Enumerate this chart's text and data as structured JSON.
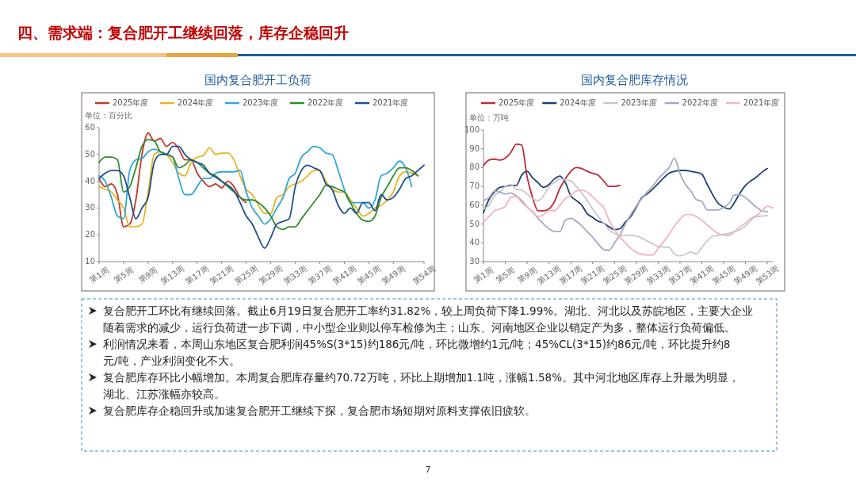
{
  "chart_data": [
    {
      "type": "line",
      "title": "国内复合肥开工负荷",
      "ylabel": "单位：百分比",
      "legend": "top",
      "grid": false,
      "ylim": [
        10,
        60
      ],
      "yticks": [
        10,
        20,
        30,
        40,
        50,
        60
      ],
      "categories": [
        "第1周",
        null,
        null,
        null,
        "第5周",
        null,
        null,
        null,
        "第9周",
        null,
        null,
        null,
        "第13周",
        null,
        null,
        null,
        "第17周",
        null,
        null,
        null,
        "第21周",
        null,
        null,
        null,
        "第25周",
        null,
        null,
        null,
        "第29周",
        null,
        null,
        null,
        "第33周",
        null,
        null,
        null,
        "第37周",
        null,
        null,
        null,
        "第41周",
        null,
        null,
        null,
        "第45周",
        null,
        null,
        null,
        "第49周",
        null,
        null,
        null,
        null,
        "第54周"
      ],
      "series": [
        {
          "name": "2025年度",
          "color": "#c0392b",
          "values": [
            41,
            38,
            39,
            35,
            23,
            24,
            33,
            50,
            58,
            55,
            56,
            53,
            54.5,
            52,
            48,
            48,
            43,
            40,
            38,
            39,
            37.5,
            40,
            38,
            34,
            32,
            null,
            null,
            null,
            null,
            null,
            null,
            null,
            null,
            null,
            null,
            null,
            null,
            null,
            null,
            null,
            null,
            null,
            null,
            null,
            null,
            null,
            null,
            null,
            null,
            null,
            null,
            null,
            null,
            null
          ]
        },
        {
          "name": "2024年度",
          "color": "#e6b422",
          "values": [
            38,
            37,
            36,
            33,
            30,
            23,
            23,
            24,
            36,
            50,
            51,
            50,
            47,
            43,
            42,
            47,
            49,
            49.5,
            52.5,
            50,
            50.5,
            50.5,
            48,
            42,
            37,
            35,
            31,
            28,
            28,
            34,
            35,
            38,
            39,
            40,
            42,
            44,
            44,
            40,
            37,
            36,
            36,
            33,
            30,
            27,
            28,
            30,
            31,
            33,
            36,
            42,
            43.5,
            43,
            42,
            null
          ]
        },
        {
          "name": "2023年度",
          "color": "#2ea7d8",
          "values": [
            42,
            40,
            34,
            27,
            26,
            44,
            48,
            48.5,
            51,
            52,
            51,
            50,
            49,
            41,
            35,
            35,
            38,
            41,
            41,
            43,
            43.5,
            43.5,
            43.5,
            44,
            36,
            30,
            27,
            24,
            26,
            30,
            34,
            41,
            43,
            49,
            51,
            53,
            52.5,
            50.5,
            50,
            44,
            37,
            32,
            32,
            32,
            30,
            33,
            42,
            43,
            45,
            47.5,
            45,
            38,
            null,
            null
          ]
        },
        {
          "name": "2022年度",
          "color": "#2e8b2e",
          "values": [
            47,
            49,
            49,
            48,
            36,
            38,
            45,
            53,
            55.5,
            55,
            51,
            50,
            49,
            45,
            46,
            48,
            47,
            45,
            43,
            42,
            40,
            38,
            36,
            34,
            33,
            33,
            32,
            30,
            27,
            23,
            22,
            23,
            23,
            26,
            29,
            32,
            35,
            38.5,
            38,
            37,
            36,
            32,
            28,
            25.5,
            25,
            27,
            34,
            38,
            42,
            45,
            45,
            44,
            42,
            null
          ]
        },
        {
          "name": "2021年度",
          "color": "#1f4e8c",
          "values": [
            41,
            43,
            44,
            44,
            42,
            34,
            26,
            30,
            34,
            47,
            50,
            50,
            53,
            53,
            50,
            48,
            47,
            46,
            43,
            41.5,
            40,
            38.5,
            36.5,
            32,
            27,
            24,
            19,
            15,
            19,
            24,
            25,
            26,
            38,
            44,
            46,
            45,
            44,
            39,
            37,
            31,
            28,
            30,
            28,
            32,
            32,
            29,
            35,
            33,
            34,
            37,
            41,
            42,
            44,
            46
          ]
        }
      ]
    },
    {
      "type": "line",
      "title": "国内复合肥库存情况",
      "ylabel": "单位：万吨",
      "legend": "top",
      "grid": false,
      "ylim": [
        30,
        100
      ],
      "yticks": [
        30,
        40,
        50,
        60,
        70,
        80,
        90,
        100
      ],
      "categories": [
        "第1周",
        null,
        null,
        null,
        "第5周",
        null,
        null,
        null,
        "第9周",
        null,
        null,
        null,
        "第13周",
        null,
        null,
        null,
        "第17周",
        null,
        null,
        null,
        "第21周",
        null,
        null,
        null,
        "第25周",
        null,
        null,
        null,
        "第29周",
        null,
        null,
        null,
        "第33周",
        null,
        null,
        null,
        "第37周",
        null,
        null,
        null,
        "第41周",
        null,
        null,
        null,
        "第45周",
        null,
        null,
        null,
        "第49周",
        null,
        null,
        null,
        "第53周",
        null
      ],
      "series": [
        {
          "name": "2025年度",
          "color": "#c0283a",
          "values": [
            81,
            84,
            84.5,
            84,
            85,
            88,
            92.5,
            92,
            75,
            64,
            57,
            57,
            58,
            62,
            69,
            74,
            78,
            80,
            79.5,
            78,
            77,
            76,
            73,
            70,
            70,
            70.5,
            null,
            null,
            null,
            null,
            null,
            null,
            null,
            null,
            null,
            null,
            null,
            null,
            null,
            null,
            null,
            null,
            null,
            null,
            null,
            null,
            null,
            null,
            null,
            null,
            null,
            null,
            null,
            null
          ]
        },
        {
          "name": "2024年度",
          "color": "#1f3f73",
          "values": [
            56,
            63,
            67,
            69.5,
            70,
            70.5,
            70.5,
            76,
            78,
            74.5,
            72,
            69.5,
            71,
            74,
            75.5,
            72,
            65,
            62.5,
            60,
            55.5,
            53.5,
            51.5,
            50.5,
            48.5,
            47,
            47.5,
            51,
            54,
            59,
            64,
            66,
            68.5,
            71.5,
            74.5,
            77,
            78,
            78.5,
            78.5,
            78,
            77.5,
            76.5,
            71,
            65.5,
            61,
            59,
            58,
            61.5,
            66.5,
            70.5,
            73,
            75,
            77.5,
            79.5,
            null
          ]
        },
        {
          "name": "2023年度",
          "color": "#c8c8c8",
          "values": [
            58,
            60,
            65,
            67,
            70,
            71,
            68.5,
            68,
            66,
            63.5,
            62.5,
            65,
            70,
            72,
            74,
            73.5,
            73,
            70,
            66.5,
            62.5,
            58,
            54,
            50.5,
            47,
            45,
            44,
            44,
            44,
            43.5,
            42.5,
            41,
            39.5,
            38,
            37.8,
            37.5,
            34,
            33,
            34,
            35,
            34,
            37.5,
            41,
            43.5,
            44,
            44.5,
            45,
            46,
            47,
            49,
            52,
            54,
            54.2,
            54.5,
            null
          ]
        },
        {
          "name": "2022年度",
          "color": "#a3a9c2",
          "values": [
            62.5,
            64,
            67.5,
            67,
            66,
            66.5,
            65,
            62.5,
            59,
            56.5,
            53,
            50,
            47.5,
            46,
            46,
            52,
            53,
            51.5,
            49,
            46,
            43,
            39.5,
            36.5,
            36,
            40,
            44,
            50,
            55,
            59.5,
            63.5,
            67,
            70,
            74,
            77,
            80,
            85,
            77,
            71,
            67.5,
            63,
            62,
            57.5,
            57.5,
            57.5,
            59,
            61,
            65.5,
            65.5,
            64,
            61.5,
            59,
            57,
            56.5,
            null
          ]
        },
        {
          "name": "2021年度",
          "color": "#f0b5bd",
          "values": [
            51,
            54,
            57,
            58,
            59.5,
            64,
            64.5,
            61.5,
            59,
            56.5,
            54,
            55,
            57,
            57,
            60,
            63.5,
            65.5,
            67.5,
            68,
            67,
            64.5,
            61.5,
            59,
            52,
            47,
            43,
            40,
            37,
            35,
            34,
            33.5,
            33.5,
            37,
            40.5,
            44.5,
            49,
            52.5,
            55,
            55,
            54,
            52,
            49.5,
            47,
            45,
            44,
            44,
            46,
            48.5,
            50.5,
            53,
            54.5,
            57,
            59.5,
            58.5
          ]
        }
      ]
    },
    {
      "type": "other",
      "title": "四、需求端：复合肥开工继续回落，库存企稳回升",
      "annotations": [
        "复合肥开工环比有继续回落。截止6月19日复合肥开工率约31.82%，较上周负荷下降1.99%。湖北、河北以及苏皖地区，主要大企业随着需求的减少，运行负荷进一步下调，中小型企业则以停车检修为主；山东、河南地区企业以销定产为多，整体运行负荷偏低。",
        "利润情况来看，本周山东地区复合肥利润45%S(3*15)约186元/吨，环比微增约1元/吨；45%CL(3*15)约86元/吨，环比提升约8元/吨，产业利润变化不大。",
        "复合肥库存环比小幅增加。本周复合肥库存量约70.72万吨，环比上期增加1.1吨，涨幅1.58%。其中河北地区库存上升最为明显，湖北、江苏涨幅亦较高。",
        "复合肥库存企稳回升或加速复合肥开工继续下探，复合肥市场短期对原料支撑依旧疲软。",
        "7"
      ]
    }
  ]
}
